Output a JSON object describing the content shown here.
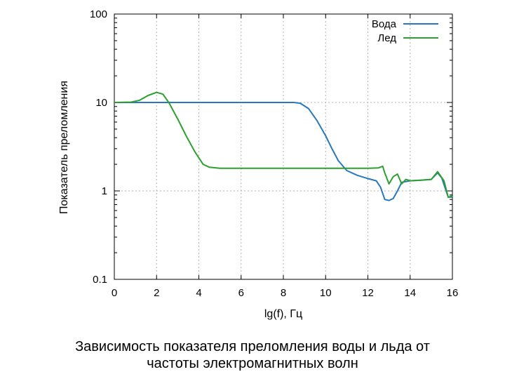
{
  "caption": {
    "line1": "Зависимость показателя преломления воды и льда от",
    "line2": "частоты электромагнитных волн"
  },
  "chart_data": {
    "type": "line",
    "xlabel": "lg(f), Гц",
    "ylabel": "Показатель преломления",
    "xlim": [
      0,
      16
    ],
    "ylim": [
      0.1,
      100
    ],
    "yscale": "log",
    "x_ticks": [
      0,
      2,
      4,
      6,
      8,
      10,
      12,
      14,
      16
    ],
    "y_ticks": [
      0.1,
      1,
      10,
      100
    ],
    "y_tick_labels": [
      "0.1",
      "1",
      "10",
      "100"
    ],
    "grid": true,
    "legend_position": "top-right",
    "series": [
      {
        "name": "Вода",
        "color": "#2878c0",
        "points": [
          [
            0,
            10
          ],
          [
            1,
            10
          ],
          [
            2,
            10
          ],
          [
            3,
            10
          ],
          [
            4,
            10
          ],
          [
            5,
            10
          ],
          [
            6,
            10
          ],
          [
            7,
            10
          ],
          [
            8,
            10
          ],
          [
            8.5,
            10
          ],
          [
            8.8,
            9.8
          ],
          [
            9.2,
            8.5
          ],
          [
            9.6,
            6.2
          ],
          [
            10,
            4.2
          ],
          [
            10.3,
            3.0
          ],
          [
            10.6,
            2.2
          ],
          [
            11,
            1.7
          ],
          [
            11.5,
            1.5
          ],
          [
            12,
            1.38
          ],
          [
            12.4,
            1.3
          ],
          [
            12.6,
            1.1
          ],
          [
            12.8,
            0.8
          ],
          [
            13,
            0.78
          ],
          [
            13.2,
            0.82
          ],
          [
            13.4,
            1.0
          ],
          [
            13.6,
            1.25
          ],
          [
            14,
            1.3
          ],
          [
            14.5,
            1.32
          ],
          [
            15,
            1.35
          ],
          [
            15.3,
            1.6
          ],
          [
            15.5,
            1.4
          ],
          [
            15.8,
            0.85
          ],
          [
            16,
            0.85
          ]
        ]
      },
      {
        "name": "Лед",
        "color": "#2ca02c",
        "points": [
          [
            0,
            10
          ],
          [
            0.8,
            10.1
          ],
          [
            1.2,
            10.6
          ],
          [
            1.6,
            12
          ],
          [
            2,
            13
          ],
          [
            2.3,
            12.4
          ],
          [
            2.6,
            9.8
          ],
          [
            3,
            6.5
          ],
          [
            3.4,
            4.2
          ],
          [
            3.8,
            2.8
          ],
          [
            4.2,
            2.0
          ],
          [
            4.5,
            1.85
          ],
          [
            5,
            1.8
          ],
          [
            6,
            1.8
          ],
          [
            7,
            1.8
          ],
          [
            8,
            1.8
          ],
          [
            9,
            1.8
          ],
          [
            10,
            1.8
          ],
          [
            11,
            1.8
          ],
          [
            12,
            1.8
          ],
          [
            12.5,
            1.82
          ],
          [
            12.7,
            1.9
          ],
          [
            12.8,
            1.6
          ],
          [
            13,
            1.2
          ],
          [
            13.2,
            1.45
          ],
          [
            13.4,
            1.55
          ],
          [
            13.6,
            1.2
          ],
          [
            13.8,
            1.35
          ],
          [
            14,
            1.3
          ],
          [
            14.5,
            1.32
          ],
          [
            15,
            1.35
          ],
          [
            15.3,
            1.65
          ],
          [
            15.6,
            1.3
          ],
          [
            15.8,
            0.85
          ],
          [
            16,
            0.88
          ]
        ]
      }
    ]
  }
}
